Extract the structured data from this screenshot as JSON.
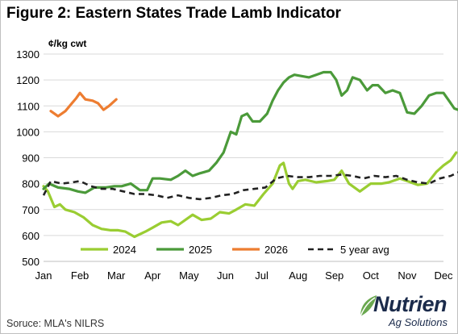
{
  "title": "Figure 2: Eastern States Trade Lamb Indicator",
  "unit_label": "¢/kg cwt",
  "source": "Soruce: MLA's NILRS",
  "logo": {
    "name": "Nutrien",
    "tagline": "Ag Solutions"
  },
  "chart_data": {
    "type": "line",
    "title": "Figure 2: Eastern States Trade Lamb Indicator",
    "ylabel": "¢/kg cwt",
    "xlabel": "",
    "x_categories": [
      "Jan",
      "Feb",
      "Mar",
      "Apr",
      "May",
      "Jun",
      "Jul",
      "Aug",
      "Sep",
      "Oct",
      "Nov",
      "Dec"
    ],
    "ylim": [
      500,
      1300
    ],
    "y_ticks": [
      500,
      600,
      700,
      800,
      900,
      1000,
      1100,
      1200,
      1300
    ],
    "grid": true,
    "legend_position": "bottom",
    "series": [
      {
        "name": "2024",
        "color": "#9acd32",
        "style": "solid",
        "points": [
          [
            0.0,
            790
          ],
          [
            0.12,
            770
          ],
          [
            0.3,
            710
          ],
          [
            0.45,
            720
          ],
          [
            0.6,
            700
          ],
          [
            0.85,
            690
          ],
          [
            1.1,
            670
          ],
          [
            1.35,
            640
          ],
          [
            1.6,
            625
          ],
          [
            1.85,
            620
          ],
          [
            2.05,
            620
          ],
          [
            2.25,
            615
          ],
          [
            2.5,
            595
          ],
          [
            2.8,
            615
          ],
          [
            3.0,
            630
          ],
          [
            3.25,
            650
          ],
          [
            3.5,
            655
          ],
          [
            3.7,
            640
          ],
          [
            3.9,
            660
          ],
          [
            4.1,
            680
          ],
          [
            4.35,
            660
          ],
          [
            4.6,
            665
          ],
          [
            4.85,
            690
          ],
          [
            5.1,
            685
          ],
          [
            5.3,
            700
          ],
          [
            5.55,
            720
          ],
          [
            5.8,
            715
          ],
          [
            6.05,
            760
          ],
          [
            6.3,
            800
          ],
          [
            6.5,
            870
          ],
          [
            6.6,
            880
          ],
          [
            6.75,
            800
          ],
          [
            6.85,
            780
          ],
          [
            7.0,
            810
          ],
          [
            7.2,
            815
          ],
          [
            7.5,
            805
          ],
          [
            7.8,
            810
          ],
          [
            8.0,
            815
          ],
          [
            8.2,
            850
          ],
          [
            8.4,
            800
          ],
          [
            8.7,
            770
          ],
          [
            9.0,
            800
          ],
          [
            9.3,
            800
          ],
          [
            9.5,
            805
          ],
          [
            9.8,
            820
          ],
          [
            10.0,
            810
          ],
          [
            10.3,
            795
          ],
          [
            10.55,
            800
          ],
          [
            10.8,
            845
          ],
          [
            11.0,
            870
          ],
          [
            11.2,
            890
          ],
          [
            11.35,
            920
          ]
        ]
      },
      {
        "name": "2025",
        "color": "#4b9a3a",
        "style": "solid",
        "points": [
          [
            0.0,
            780
          ],
          [
            0.15,
            800
          ],
          [
            0.4,
            785
          ],
          [
            0.7,
            780
          ],
          [
            0.95,
            770
          ],
          [
            1.15,
            765
          ],
          [
            1.4,
            785
          ],
          [
            1.7,
            785
          ],
          [
            1.95,
            790
          ],
          [
            2.15,
            790
          ],
          [
            2.4,
            800
          ],
          [
            2.65,
            775
          ],
          [
            2.85,
            775
          ],
          [
            3.0,
            820
          ],
          [
            3.2,
            820
          ],
          [
            3.5,
            815
          ],
          [
            3.7,
            830
          ],
          [
            3.9,
            850
          ],
          [
            4.1,
            830
          ],
          [
            4.3,
            840
          ],
          [
            4.55,
            850
          ],
          [
            4.75,
            880
          ],
          [
            4.95,
            920
          ],
          [
            5.15,
            1000
          ],
          [
            5.3,
            990
          ],
          [
            5.45,
            1060
          ],
          [
            5.6,
            1070
          ],
          [
            5.75,
            1040
          ],
          [
            5.95,
            1040
          ],
          [
            6.15,
            1070
          ],
          [
            6.3,
            1120
          ],
          [
            6.45,
            1160
          ],
          [
            6.6,
            1190
          ],
          [
            6.75,
            1210
          ],
          [
            6.9,
            1220
          ],
          [
            7.1,
            1215
          ],
          [
            7.3,
            1210
          ],
          [
            7.5,
            1220
          ],
          [
            7.7,
            1230
          ],
          [
            7.9,
            1230
          ],
          [
            8.05,
            1200
          ],
          [
            8.2,
            1140
          ],
          [
            8.35,
            1160
          ],
          [
            8.5,
            1210
          ],
          [
            8.7,
            1200
          ],
          [
            8.9,
            1160
          ],
          [
            9.05,
            1180
          ],
          [
            9.2,
            1180
          ],
          [
            9.4,
            1150
          ],
          [
            9.6,
            1160
          ],
          [
            9.8,
            1150
          ],
          [
            10.0,
            1075
          ],
          [
            10.2,
            1070
          ],
          [
            10.4,
            1100
          ],
          [
            10.6,
            1140
          ],
          [
            10.8,
            1150
          ],
          [
            11.0,
            1150
          ],
          [
            11.15,
            1120
          ],
          [
            11.3,
            1090
          ],
          [
            11.5,
            1080
          ],
          [
            11.75,
            1080
          ],
          [
            12.0,
            1090
          ]
        ]
      },
      {
        "name": "2026",
        "color": "#ed7d31",
        "style": "solid",
        "points": [
          [
            0.2,
            1080
          ],
          [
            0.4,
            1060
          ],
          [
            0.6,
            1080
          ],
          [
            0.75,
            1105
          ],
          [
            0.9,
            1130
          ],
          [
            1.0,
            1150
          ],
          [
            1.15,
            1125
          ],
          [
            1.35,
            1120
          ],
          [
            1.5,
            1110
          ],
          [
            1.65,
            1085
          ],
          [
            1.8,
            1100
          ],
          [
            2.0,
            1125
          ]
        ]
      },
      {
        "name": "5 year avg",
        "color": "#222222",
        "style": "dashed",
        "points": [
          [
            0.0,
            755
          ],
          [
            0.2,
            810
          ],
          [
            0.5,
            800
          ],
          [
            0.8,
            805
          ],
          [
            1.0,
            810
          ],
          [
            1.3,
            790
          ],
          [
            1.6,
            780
          ],
          [
            1.9,
            780
          ],
          [
            2.2,
            770
          ],
          [
            2.5,
            760
          ],
          [
            2.8,
            760
          ],
          [
            3.1,
            755
          ],
          [
            3.4,
            745
          ],
          [
            3.7,
            755
          ],
          [
            4.0,
            745
          ],
          [
            4.3,
            740
          ],
          [
            4.6,
            745
          ],
          [
            4.9,
            755
          ],
          [
            5.2,
            760
          ],
          [
            5.5,
            775
          ],
          [
            5.8,
            780
          ],
          [
            6.1,
            785
          ],
          [
            6.4,
            820
          ],
          [
            6.7,
            830
          ],
          [
            7.0,
            825
          ],
          [
            7.3,
            825
          ],
          [
            7.6,
            830
          ],
          [
            7.9,
            830
          ],
          [
            8.2,
            835
          ],
          [
            8.5,
            830
          ],
          [
            8.8,
            820
          ],
          [
            9.1,
            830
          ],
          [
            9.4,
            825
          ],
          [
            9.7,
            830
          ],
          [
            10.0,
            815
          ],
          [
            10.3,
            805
          ],
          [
            10.6,
            800
          ],
          [
            10.9,
            820
          ],
          [
            11.2,
            830
          ],
          [
            11.5,
            850
          ],
          [
            11.8,
            815
          ]
        ]
      }
    ]
  }
}
